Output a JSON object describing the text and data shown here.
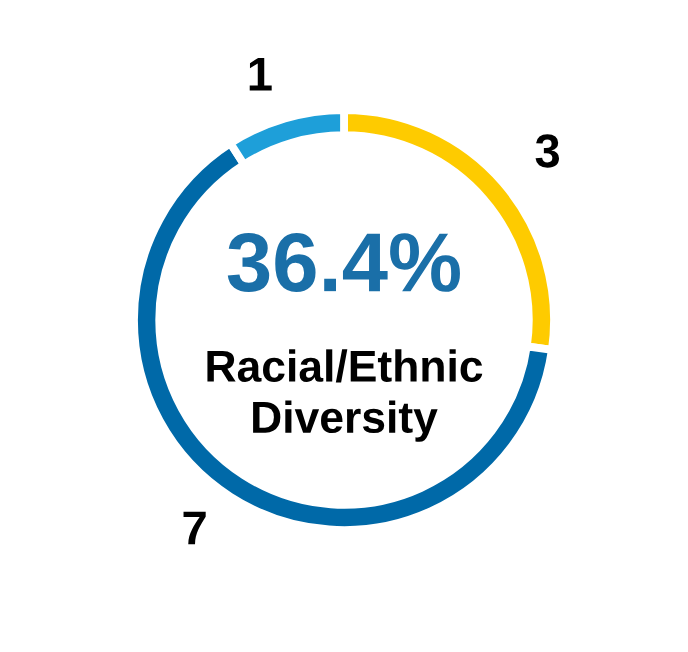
{
  "chart_data": {
    "type": "donut",
    "categories": [
      null,
      null,
      null
    ],
    "values": [
      3,
      7,
      1
    ],
    "colors": [
      "#fecb00",
      "#0069a8",
      "#1e9fd9"
    ],
    "data_labels": true,
    "annotations": [
      "36.4%",
      "Racial/Ethnic\nDiversity"
    ]
  }
}
